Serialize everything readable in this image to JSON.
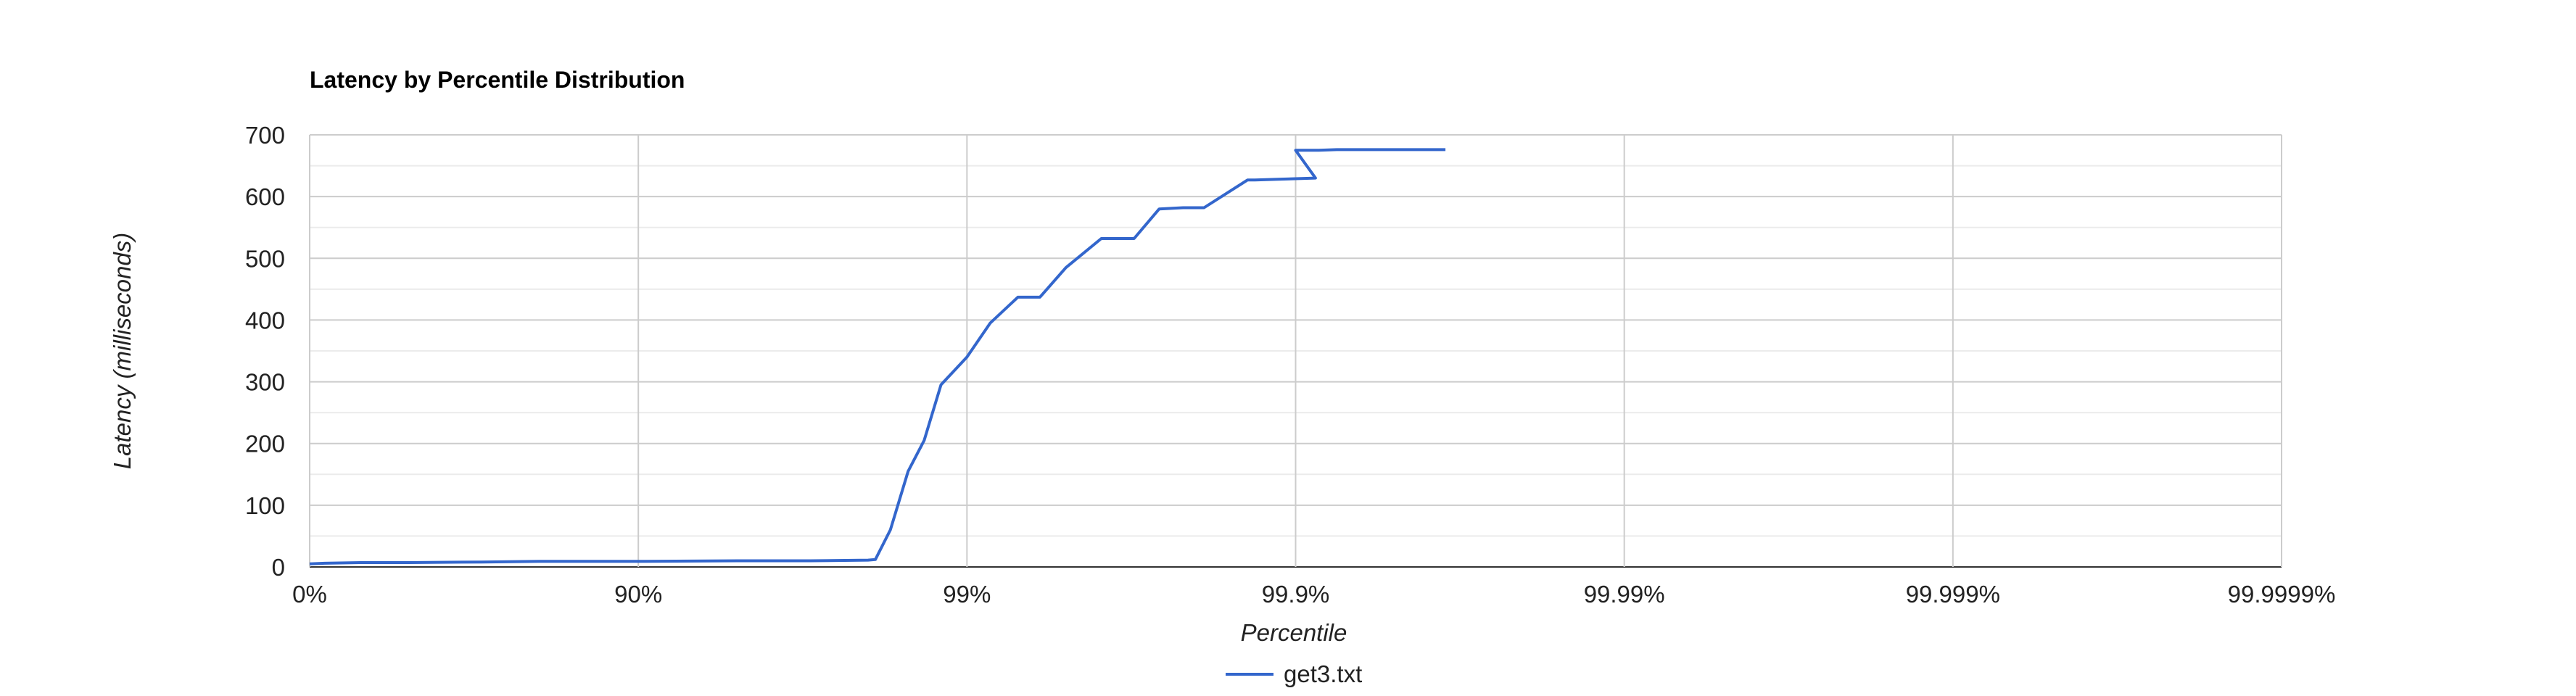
{
  "chart_data": {
    "type": "line",
    "title": "Latency by Percentile Distribution",
    "xlabel": "Percentile",
    "ylabel": "Latency (milliseconds)",
    "x_scale": "log_one_minus_percentile",
    "x_ticks": [
      "0%",
      "90%",
      "99%",
      "99.9%",
      "99.99%",
      "99.999%",
      "99.9999%"
    ],
    "y_ticks": [
      "0",
      "100",
      "200",
      "300",
      "400",
      "500",
      "600",
      "700"
    ],
    "ylim": [
      0,
      700
    ],
    "grid": true,
    "legend_position": "bottom",
    "series": [
      {
        "name": "get3.txt",
        "color": "#3366cc",
        "x": [
          0,
          0.1,
          0.3,
          0.5,
          0.7,
          0.8,
          0.9,
          0.95,
          0.97,
          0.98,
          0.981,
          0.9829,
          0.9849,
          0.9865,
          0.988,
          0.99,
          0.9915,
          0.993,
          0.994,
          0.995,
          0.9961,
          0.9969,
          0.9974,
          0.9978,
          0.9981,
          0.9986,
          0.99867,
          0.99887,
          0.99913,
          0.999,
          0.99915,
          0.99925,
          0.9994,
          0.99955,
          0.99965
        ],
        "y": [
          5,
          6,
          7,
          7,
          8,
          9,
          9,
          10,
          10,
          11,
          12,
          60,
          155,
          205,
          295,
          340,
          395,
          437,
          437,
          485,
          532,
          532,
          580,
          582,
          582,
          627,
          627,
          628,
          630,
          675,
          675,
          676,
          676,
          676,
          676
        ]
      }
    ]
  }
}
